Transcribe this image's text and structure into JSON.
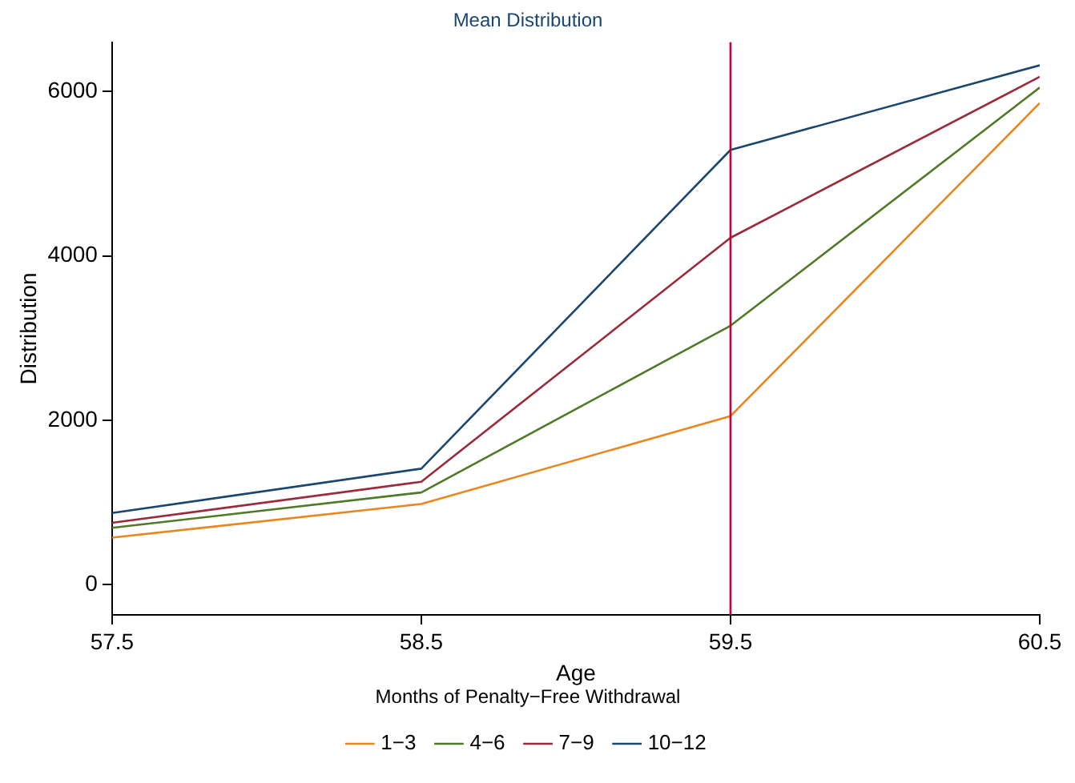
{
  "chart_data": {
    "type": "line",
    "title": "Mean Distribution",
    "xlabel": "Age",
    "ylabel": "Distribution",
    "legend_title": "Months of Penalty−Free Withdrawal",
    "x": [
      57.5,
      58.5,
      59.5,
      60.5
    ],
    "series": [
      {
        "name": "1−3",
        "color": "#e8871e",
        "values": [
          570,
          980,
          2050,
          5860
        ]
      },
      {
        "name": "4−6",
        "color": "#4f7a28",
        "values": [
          690,
          1120,
          3150,
          6050
        ]
      },
      {
        "name": "7−9",
        "color": "#9b2a3b",
        "values": [
          750,
          1250,
          4220,
          6180
        ]
      },
      {
        "name": "10−12",
        "color": "#1a476f",
        "values": [
          870,
          1410,
          5290,
          6320
        ]
      }
    ],
    "xlim": [
      57.5,
      60.5
    ],
    "xticks": [
      57.5,
      58.5,
      59.5,
      60.5
    ],
    "ylim": [
      -370,
      6600
    ],
    "yticks": [
      0,
      2000,
      4000,
      6000
    ],
    "ref_lines": [
      {
        "axis": "x",
        "value": 59.5,
        "color": "#c10534"
      }
    ],
    "grid": false,
    "legend": "bottom",
    "marker": "none",
    "line_style": "solid"
  }
}
